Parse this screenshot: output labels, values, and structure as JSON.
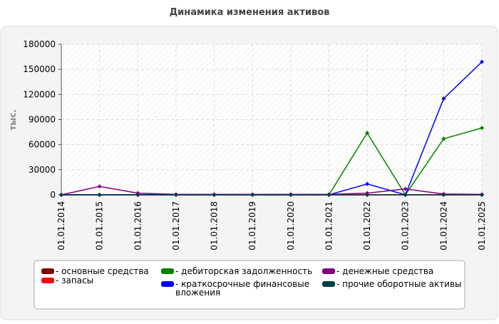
{
  "chart_data": {
    "type": "line",
    "title": "Динамика изменения активов",
    "y_label": "тыс.",
    "categories": [
      "01.01.2014",
      "01.01.2015",
      "01.01.2016",
      "01.01.2017",
      "01.01.2018",
      "01.01.2019",
      "01.01.2020",
      "01.01.2021",
      "01.01.2022",
      "01.01.2023",
      "01.01.2024",
      "01.01.2025"
    ],
    "series": [
      {
        "name": "- основные средства",
        "color": "#800000",
        "values": [
          0,
          0,
          0,
          0,
          0,
          0,
          0,
          0,
          0,
          0,
          0,
          0
        ]
      },
      {
        "name": "- запасы",
        "color": "#ff0000",
        "values": [
          0,
          0,
          0,
          0,
          0,
          0,
          0,
          0,
          0,
          0,
          0,
          0
        ]
      },
      {
        "name": "- дебиторская задолженность",
        "color": "#008000",
        "values": [
          0,
          0,
          0,
          0,
          0,
          0,
          0,
          0,
          74000,
          0,
          67000,
          80000
        ]
      },
      {
        "name": "- краткосрочные финансовые вложения",
        "color": "#0000ff",
        "values": [
          0,
          0,
          0,
          0,
          0,
          0,
          0,
          0,
          13000,
          0,
          115000,
          159000
        ]
      },
      {
        "name": "- денежные средства",
        "color": "#800080",
        "values": [
          0,
          10000,
          2000,
          500,
          500,
          500,
          500,
          500,
          2000,
          7000,
          1000,
          500
        ]
      },
      {
        "name": "- прочие оборотные активы",
        "color": "#004040",
        "values": [
          0,
          0,
          0,
          0,
          0,
          0,
          0,
          0,
          0,
          0,
          0,
          0
        ]
      }
    ],
    "ylim": [
      0,
      180000
    ],
    "yticks": [
      0,
      30000,
      60000,
      90000,
      120000,
      150000,
      180000
    ],
    "grid": true
  }
}
